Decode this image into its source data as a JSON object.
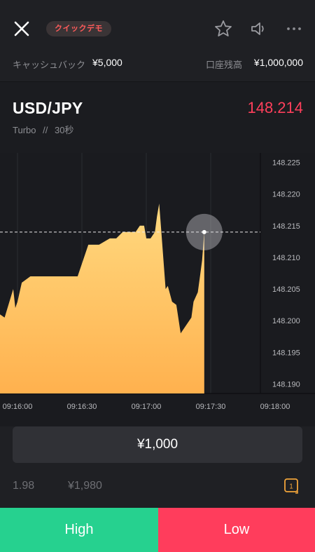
{
  "header": {
    "badge": "クイックデモ",
    "cashback_label": "キャッシュバック",
    "cashback_value": "¥5,000",
    "balance_label": "口座残高",
    "balance_value": "¥1,000,000"
  },
  "asset": {
    "name": "USD/JPY",
    "price": "148.214",
    "mode": "Turbo",
    "separator": "//",
    "duration": "30秒"
  },
  "chart_data": {
    "type": "area",
    "x": [
      "09:15:47",
      "09:15:48",
      "09:15:50",
      "09:15:51",
      "09:15:54",
      "09:15:58",
      "09:15:59",
      "09:16:00",
      "09:16:02",
      "09:16:06",
      "09:16:08",
      "09:16:13",
      "09:16:20",
      "09:16:28",
      "09:16:33",
      "09:16:38",
      "09:16:43",
      "09:16:46",
      "09:16:49",
      "09:16:52",
      "09:16:55",
      "09:16:57",
      "09:16:59",
      "09:17:00",
      "09:17:02",
      "09:17:04",
      "09:17:05",
      "09:17:06",
      "09:17:07",
      "09:17:09",
      "09:17:10",
      "09:17:12",
      "09:17:14",
      "09:17:16",
      "09:17:18",
      "09:17:21",
      "09:17:22",
      "09:17:24",
      "09:17:25",
      "09:17:26",
      "09:17:27"
    ],
    "values": [
      148.203,
      148.2035,
      148.202,
      148.201,
      148.2005,
      148.205,
      148.202,
      148.203,
      148.206,
      148.207,
      148.207,
      148.207,
      148.207,
      148.207,
      148.212,
      148.212,
      148.213,
      148.213,
      148.214,
      148.214,
      148.214,
      148.215,
      148.215,
      148.213,
      148.213,
      148.214,
      148.2165,
      148.2185,
      148.214,
      148.205,
      148.2055,
      148.203,
      148.2025,
      148.198,
      148.199,
      148.2005,
      148.203,
      148.2045,
      148.207,
      148.2095,
      148.214
    ],
    "current_price": 148.214,
    "xlabel": "",
    "ylabel": "",
    "ylim": [
      148.1885,
      148.2265
    ],
    "y_ticks": [
      "148.225",
      "148.220",
      "148.215",
      "148.210",
      "148.205",
      "148.200",
      "148.195",
      "148.190"
    ],
    "x_ticks": [
      "09:16:00",
      "09:16:30",
      "09:17:00",
      "09:17:30",
      "09:18:00"
    ],
    "fill_top": "#ffd97f",
    "fill_bottom": "#ffb14e",
    "grid": true
  },
  "trade": {
    "stake": "¥1,000",
    "payout_rate": "1.98",
    "payout_amount": "¥1,980",
    "history_count": "1",
    "high_label": "High",
    "low_label": "Low"
  },
  "colors": {
    "high": "#26d18f",
    "low": "#ff3d5c",
    "price": "#ff3f5b"
  }
}
